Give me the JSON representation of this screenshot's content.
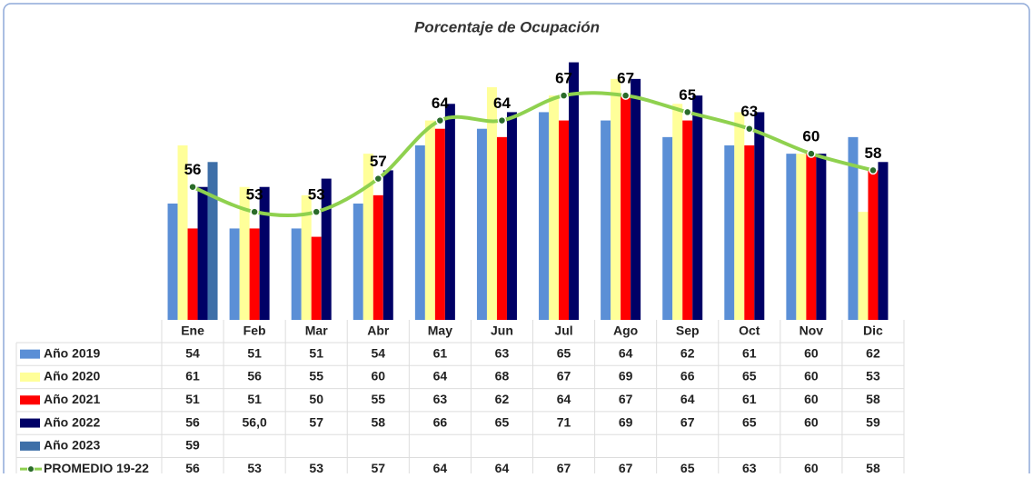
{
  "chart_data": {
    "type": "bar",
    "title": "Porcentaje de Ocupación",
    "categories": [
      "Ene",
      "Feb",
      "Mar",
      "Abr",
      "May",
      "Jun",
      "Jul",
      "Ago",
      "Sep",
      "Oct",
      "Nov",
      "Dic"
    ],
    "series": [
      {
        "name": "Año 2019",
        "color": "#5b8fd6",
        "values": [
          54,
          51,
          51,
          54,
          61,
          63,
          65,
          64,
          62,
          61,
          60,
          62
        ]
      },
      {
        "name": "Año 2020",
        "color": "#ffff99",
        "values": [
          61,
          56,
          55,
          60,
          64,
          68,
          67,
          69,
          66,
          65,
          60,
          53
        ]
      },
      {
        "name": "Año 2021",
        "color": "#ff0000",
        "values": [
          51,
          51,
          50,
          55,
          63,
          62,
          64,
          67,
          64,
          61,
          60,
          58
        ]
      },
      {
        "name": "Año 2022",
        "color": "#000066",
        "values": [
          56,
          56,
          57,
          58,
          66,
          65,
          71,
          69,
          67,
          65,
          60,
          59
        ],
        "value_labels": [
          "56",
          "56,0",
          "57",
          "58",
          "66",
          "65",
          "71",
          "69",
          "67",
          "65",
          "60",
          "59"
        ]
      },
      {
        "name": "Año 2023",
        "color": "#3e6fa8",
        "values": [
          59,
          null,
          null,
          null,
          null,
          null,
          null,
          null,
          null,
          null,
          null,
          null
        ]
      },
      {
        "name": "PROMEDIO 19-22",
        "color": "#8fd14f",
        "type": "line",
        "values": [
          56,
          53,
          53,
          57,
          64,
          64,
          67,
          67,
          65,
          63,
          60,
          58
        ]
      }
    ],
    "ylim": [
      40,
      75
    ],
    "yticks": [
      40,
      45,
      50,
      55,
      60,
      65,
      70,
      75
    ],
    "y2lim": [
      40,
      75
    ],
    "y2ticks": [
      40,
      45,
      50,
      55,
      60,
      65,
      70,
      75
    ],
    "grid": true
  }
}
